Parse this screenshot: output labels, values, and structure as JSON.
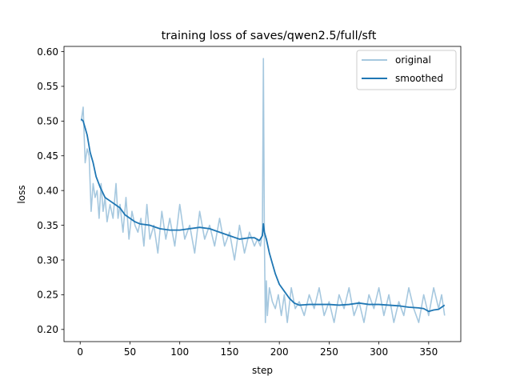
{
  "chart_data": {
    "type": "line",
    "title": "training loss of saves/qwen2.5/full/sft",
    "xlabel": "step",
    "ylabel": "loss",
    "xlim": [
      -16.25,
      382.25
    ],
    "ylim": [
      0.1825,
      0.6075
    ],
    "xticks": [
      0,
      50,
      100,
      150,
      200,
      250,
      300,
      350
    ],
    "xtick_labels": [
      "0",
      "50",
      "100",
      "150",
      "200",
      "250",
      "300",
      "350"
    ],
    "yticks": [
      0.2,
      0.25,
      0.3,
      0.35,
      0.4,
      0.45,
      0.5,
      0.55,
      0.6
    ],
    "ytick_labels": [
      "0.20",
      "0.25",
      "0.30",
      "0.35",
      "0.40",
      "0.45",
      "0.50",
      "0.55",
      "0.60"
    ],
    "grid": false,
    "legend_position": "top-right",
    "series": [
      {
        "name": "original",
        "color": "#a6c8df",
        "x": [
          1,
          3,
          5,
          7,
          9,
          11,
          13,
          15,
          17,
          19,
          21,
          23,
          25,
          27,
          30,
          33,
          36,
          38,
          40,
          43,
          46,
          49,
          52,
          55,
          58,
          61,
          64,
          67,
          70,
          74,
          78,
          82,
          86,
          90,
          95,
          100,
          105,
          110,
          115,
          120,
          125,
          130,
          135,
          140,
          145,
          150,
          155,
          160,
          165,
          170,
          175,
          178,
          181,
          183,
          184,
          185,
          186,
          187,
          188,
          190,
          193,
          196,
          199,
          202,
          205,
          208,
          212,
          216,
          220,
          225,
          230,
          235,
          240,
          245,
          250,
          255,
          260,
          265,
          270,
          275,
          280,
          285,
          290,
          295,
          300,
          305,
          310,
          315,
          320,
          325,
          330,
          335,
          340,
          345,
          350,
          355,
          360,
          363,
          366
        ],
        "y": [
          0.5,
          0.52,
          0.44,
          0.46,
          0.45,
          0.37,
          0.41,
          0.39,
          0.4,
          0.36,
          0.41,
          0.37,
          0.39,
          0.355,
          0.38,
          0.36,
          0.41,
          0.36,
          0.38,
          0.34,
          0.39,
          0.33,
          0.37,
          0.35,
          0.34,
          0.36,
          0.32,
          0.38,
          0.33,
          0.35,
          0.31,
          0.37,
          0.33,
          0.36,
          0.32,
          0.38,
          0.33,
          0.35,
          0.31,
          0.37,
          0.33,
          0.35,
          0.32,
          0.36,
          0.32,
          0.34,
          0.3,
          0.35,
          0.31,
          0.34,
          0.32,
          0.33,
          0.32,
          0.34,
          0.59,
          0.33,
          0.21,
          0.27,
          0.22,
          0.26,
          0.24,
          0.23,
          0.25,
          0.22,
          0.25,
          0.21,
          0.26,
          0.23,
          0.24,
          0.22,
          0.25,
          0.23,
          0.26,
          0.22,
          0.24,
          0.21,
          0.25,
          0.23,
          0.26,
          0.22,
          0.24,
          0.21,
          0.25,
          0.23,
          0.26,
          0.22,
          0.25,
          0.21,
          0.24,
          0.22,
          0.26,
          0.23,
          0.21,
          0.25,
          0.22,
          0.26,
          0.23,
          0.25,
          0.22
        ]
      },
      {
        "name": "smoothed",
        "color": "#1f77b4",
        "x": [
          1,
          3,
          5,
          7,
          10,
          13,
          16,
          20,
          25,
          30,
          35,
          40,
          45,
          50,
          55,
          60,
          70,
          80,
          90,
          100,
          110,
          120,
          130,
          140,
          150,
          160,
          170,
          175,
          180,
          183,
          184,
          185,
          187,
          190,
          193,
          196,
          200,
          205,
          210,
          215,
          220,
          230,
          240,
          250,
          260,
          270,
          280,
          290,
          300,
          310,
          320,
          330,
          340,
          345,
          350,
          355,
          360,
          363,
          366
        ],
        "y": [
          0.503,
          0.5,
          0.49,
          0.48,
          0.455,
          0.44,
          0.42,
          0.405,
          0.39,
          0.385,
          0.38,
          0.375,
          0.365,
          0.36,
          0.355,
          0.352,
          0.35,
          0.345,
          0.343,
          0.343,
          0.345,
          0.347,
          0.345,
          0.34,
          0.335,
          0.33,
          0.332,
          0.332,
          0.328,
          0.335,
          0.352,
          0.34,
          0.33,
          0.31,
          0.295,
          0.28,
          0.265,
          0.255,
          0.245,
          0.238,
          0.235,
          0.236,
          0.236,
          0.236,
          0.235,
          0.236,
          0.238,
          0.236,
          0.236,
          0.235,
          0.234,
          0.232,
          0.231,
          0.23,
          0.226,
          0.228,
          0.229,
          0.232,
          0.235
        ]
      }
    ]
  }
}
